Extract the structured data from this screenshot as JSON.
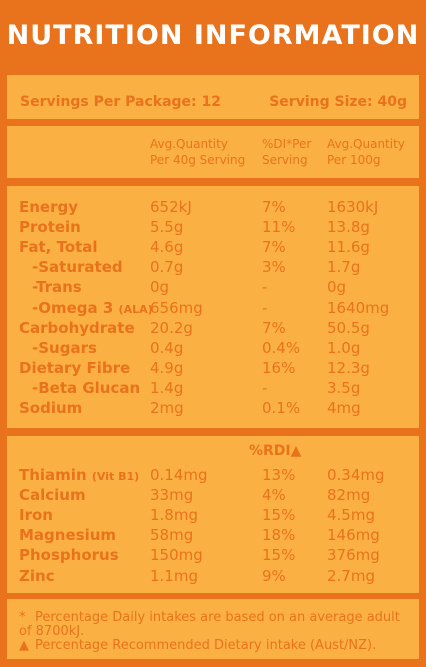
{
  "title": "NUTRITION INFORMATION",
  "servings": {
    "per_package": "Servings Per Package: 12",
    "size": "Serving Size: 40g"
  },
  "headers": {
    "col1": [
      "Avg.Quantity",
      "Per 40g Serving"
    ],
    "col2": [
      "%DI*Per",
      "Serving"
    ],
    "col3": [
      "Avg.Quantity",
      "Per 100g"
    ]
  },
  "nutrients": [
    {
      "name": "Energy",
      "per_serving": "652kJ",
      "di": "7%",
      "per_100g": "1630kJ"
    },
    {
      "name": "Protein",
      "per_serving": "5.5g",
      "di": "11%",
      "per_100g": "13.8g"
    },
    {
      "name": "Fat, Total",
      "per_serving": "4.6g",
      "di": "7%",
      "per_100g": "11.6g"
    },
    {
      "name": "-Saturated",
      "per_serving": "0.7g",
      "di": "3%",
      "per_100g": "1.7g"
    },
    {
      "name": "-Trans",
      "per_serving": "0g",
      "di": "-",
      "per_100g": "0g"
    },
    {
      "name": "-Omega 3",
      "name_suffix": "(ALA)",
      "per_serving": "656mg",
      "di": "-",
      "per_100g": "1640mg"
    },
    {
      "name": "Carbohydrate",
      "per_serving": "20.2g",
      "di": "7%",
      "per_100g": "50.5g"
    },
    {
      "name": "-Sugars",
      "per_serving": "0.4g",
      "di": "0.4%",
      "per_100g": "1.0g"
    },
    {
      "name": "Dietary Fibre",
      "per_serving": "4.9g",
      "di": "16%",
      "per_100g": "12.3g"
    },
    {
      "name": "-Beta Glucan",
      "per_serving": "1.4g",
      "di": "-",
      "per_100g": "3.5g"
    },
    {
      "name": "Sodium",
      "per_serving": "2mg",
      "di": "0.1%",
      "per_100g": "4mg"
    }
  ],
  "rdi_header": "%RDI▲",
  "minerals": [
    {
      "name": "Thiamin",
      "name_suffix": "(Vit B1)",
      "per_serving": "0.14mg",
      "rdi": "13%",
      "per_100g": "0.34mg"
    },
    {
      "name": "Calcium",
      "per_serving": "33mg",
      "rdi": "4%",
      "per_100g": "82mg"
    },
    {
      "name": "Iron",
      "per_serving": "1.8mg",
      "rdi": "15%",
      "per_100g": "4.5mg"
    },
    {
      "name": "Magnesium",
      "per_serving": "58mg",
      "rdi": "18%",
      "per_100g": "146mg"
    },
    {
      "name": "Phosphorus",
      "per_serving": "150mg",
      "rdi": "15%",
      "per_100g": "376mg"
    },
    {
      "name": "Zinc",
      "per_serving": "1.1mg",
      "rdi": "9%",
      "per_100g": "2.7mg"
    }
  ],
  "footnotes": {
    "star_mark": "*",
    "star": "Percentage Daily intakes are based on an average adult of 8700kJ.",
    "tri_mark": "▲",
    "tri": "Percentage Recommended Dietary intake (Aust/NZ)."
  },
  "colors": {
    "background": "#e8731c",
    "panel": "#fbb043",
    "text": "#e8731c",
    "title": "#ffffff"
  }
}
